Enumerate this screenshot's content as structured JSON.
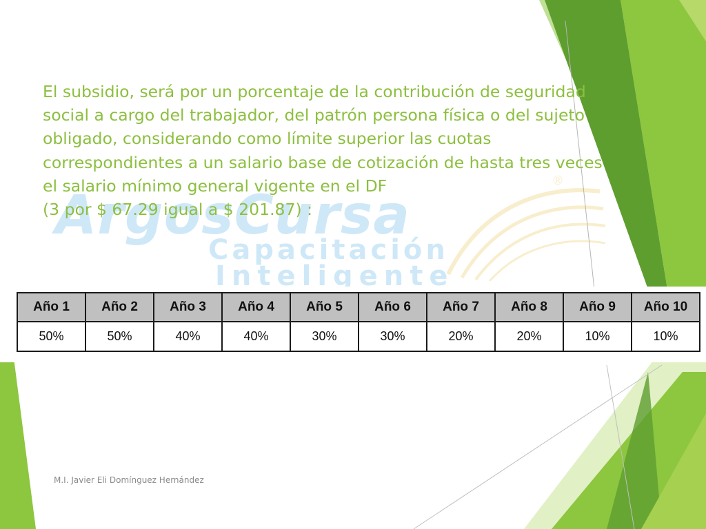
{
  "theme": {
    "text_color": "#8cbf3f",
    "accent_dark": "#5e9e2f",
    "accent_light": "#b6d96a",
    "table_header_bg": "#c0c0c0"
  },
  "watermark": {
    "word": "ArgosCursa",
    "registered": "®",
    "tagline_1": "Capacitación",
    "tagline_2": "Inteligente"
  },
  "body": {
    "lines": [
      "El subsidio, será por un porcentaje de la contribución de seguridad",
      "social a cargo del trabajador, del patrón persona física o del sujeto",
      "obligado, considerando como límite superior las cuotas",
      "correspondientes a un salario base de cotización de hasta tres veces",
      "el salario mínimo general vigente en el DF",
      "(3 por $ 67.29 igual a $ 201.87) :"
    ]
  },
  "table": {
    "headers": [
      "Año 1",
      "Año 2",
      "Año 3",
      "Año 4",
      "Año 5",
      "Año 6",
      "Año 7",
      "Año 8",
      "Año 9",
      "Año 10"
    ],
    "values": [
      "50%",
      "50%",
      "40%",
      "40%",
      "30%",
      "30%",
      "20%",
      "20%",
      "10%",
      "10%"
    ]
  },
  "footer": {
    "author": "M.I. Javier Eli Domínguez Hernández"
  }
}
